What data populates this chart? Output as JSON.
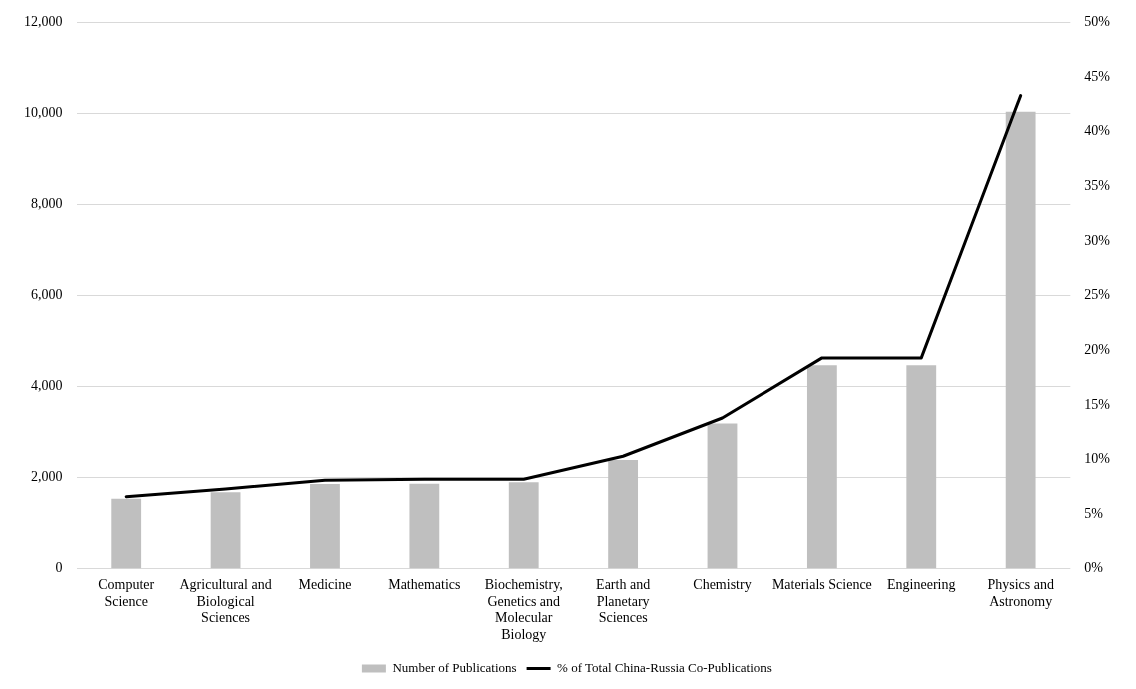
{
  "chart_data": {
    "type": "bar",
    "categories": [
      "Computer Science",
      "Agricultural and Biological Sciences",
      "Medicine",
      "Mathematics",
      "Biochemistry, Genetics and Molecular Biology",
      "Earth and Planetary Sciences",
      "Chemistry",
      "Materials Science",
      "Engineering",
      "Physics and Astronomy"
    ],
    "series": [
      {
        "name": "Number of Publications",
        "color": "#bfbfbf",
        "values": [
          1540,
          1680,
          1860,
          1870,
          1900,
          2390,
          3190,
          4470,
          4470,
          10040
        ]
      },
      {
        "name": "% of Total China-Russia Co-Publications",
        "type": "line",
        "axis": "y2",
        "color": "#000000",
        "values": [
          6.6,
          7.3,
          8.1,
          8.2,
          8.2,
          10.3,
          13.8,
          19.3,
          19.3,
          43.3
        ]
      }
    ],
    "ylim": [
      0,
      12000
    ],
    "yticks": [
      0,
      {
        "value": 2000,
        "label": "2,000"
      },
      {
        "value": 4000,
        "label": "4,000"
      },
      {
        "value": 6000,
        "label": "6,000"
      },
      {
        "value": 8000,
        "label": "8,000"
      },
      {
        "value": 10000,
        "label": "10,000"
      },
      {
        "value": 12000,
        "label": "12,000"
      }
    ],
    "y2lim": [
      0,
      50
    ],
    "y2ticks": [
      {
        "value": 0,
        "label": "0%"
      },
      {
        "value": 5,
        "label": "5%"
      },
      {
        "value": 10,
        "label": "10%"
      },
      {
        "value": 15,
        "label": "15%"
      },
      {
        "value": 20,
        "label": "20%"
      },
      {
        "value": 25,
        "label": "25%"
      },
      {
        "value": 30,
        "label": "30%"
      },
      {
        "value": 35,
        "label": "35%"
      },
      {
        "value": 40,
        "label": "40%"
      },
      {
        "value": 45,
        "label": "45%"
      },
      {
        "value": 50,
        "label": "50%"
      }
    ],
    "grid": "y",
    "legend": "bottom",
    "marker": "none"
  }
}
